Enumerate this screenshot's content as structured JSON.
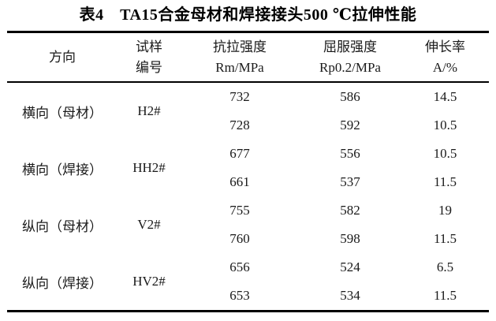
{
  "title": "表4　TA15合金母材和焊接接头500 ℃拉伸性能",
  "colors": {
    "text": "#1a1a1a",
    "rule": "#000000",
    "background": "#ffffff"
  },
  "table": {
    "headers": [
      {
        "line1": "方向",
        "line2": ""
      },
      {
        "line1": "试样",
        "line2": "编号"
      },
      {
        "line1": "抗拉强度",
        "line2": "Rm/MPa"
      },
      {
        "line1": "屈服强度",
        "line2": "Rp0.2/MPa"
      },
      {
        "line1": "伸长率",
        "line2": "A/%"
      }
    ],
    "groups": [
      {
        "direction": "横向（母材）",
        "specimen": "H2#",
        "rows": [
          {
            "rm": "732",
            "rp": "586",
            "a": "14.5"
          },
          {
            "rm": "728",
            "rp": "592",
            "a": "10.5"
          }
        ]
      },
      {
        "direction": "横向（焊接）",
        "specimen": "HH2#",
        "rows": [
          {
            "rm": "677",
            "rp": "556",
            "a": "10.5"
          },
          {
            "rm": "661",
            "rp": "537",
            "a": "11.5"
          }
        ]
      },
      {
        "direction": "纵向（母材）",
        "specimen": "V2#",
        "rows": [
          {
            "rm": "755",
            "rp": "582",
            "a": "19"
          },
          {
            "rm": "760",
            "rp": "598",
            "a": "11.5"
          }
        ]
      },
      {
        "direction": "纵向（焊接）",
        "specimen": "HV2#",
        "rows": [
          {
            "rm": "656",
            "rp": "524",
            "a": "6.5"
          },
          {
            "rm": "653",
            "rp": "534",
            "a": "11.5"
          }
        ]
      }
    ]
  }
}
